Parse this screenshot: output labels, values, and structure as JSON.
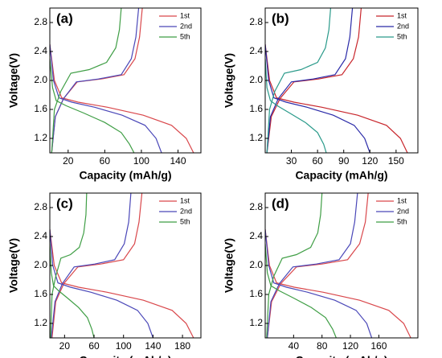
{
  "chart_data": [
    {
      "type": "line",
      "label": "(a)",
      "x_label": "Capacity (mAh/g)",
      "y_label": "Voltage(V)",
      "legend": "upper right",
      "xlim": [
        0,
        165
      ],
      "xticks": [
        20,
        60,
        100,
        140
      ],
      "ylim": [
        1.0,
        3.0
      ],
      "yticks": [
        1.2,
        1.6,
        {
          "value": 2.0,
          "label": "2.0"
        },
        2.4,
        2.8
      ],
      "series": [
        {
          "name": "1st",
          "color": "#d9474b",
          "x": [
            0,
            5,
            13,
            31,
            63,
            102,
            133,
            149,
            157,
            null,
            2,
            6,
            15,
            30,
            56,
            81,
            93,
            98,
            101
          ],
          "values": [
            2.5,
            2.0,
            1.76,
            1.7,
            1.63,
            1.52,
            1.38,
            1.2,
            1.0,
            null,
            1.0,
            1.5,
            1.75,
            1.98,
            2.02,
            2.08,
            2.3,
            2.6,
            3.0
          ]
        },
        {
          "name": "2nd",
          "color": "#4a47b8",
          "x": [
            0,
            4,
            10,
            24,
            49,
            79,
            104,
            116,
            122,
            null,
            2,
            6,
            15,
            29,
            53,
            78,
            89,
            94,
            97
          ],
          "values": [
            2.5,
            2.0,
            1.76,
            1.7,
            1.63,
            1.52,
            1.38,
            1.2,
            1.0,
            null,
            1.0,
            1.5,
            1.75,
            1.98,
            2.02,
            2.08,
            2.3,
            2.6,
            3.0
          ]
        },
        {
          "name": "5th",
          "color": "#3f9e45",
          "x": [
            0,
            3,
            7,
            18,
            37,
            60,
            78,
            87,
            92,
            null,
            2,
            5,
            12,
            23,
            43,
            62,
            72,
            76,
            78
          ],
          "values": [
            2.3,
            1.9,
            1.72,
            1.65,
            1.55,
            1.42,
            1.28,
            1.12,
            1.0,
            null,
            1.0,
            1.6,
            1.85,
            2.1,
            2.15,
            2.25,
            2.45,
            2.7,
            3.0
          ]
        }
      ]
    },
    {
      "type": "line",
      "label": "(b)",
      "x_label": "Capacity (mAh/g)",
      "y_label": "Voltage(V)",
      "legend": "upper right",
      "xlim": [
        0,
        175
      ],
      "xticks": [
        30,
        60,
        90,
        120,
        150
      ],
      "ylim": [
        1.0,
        3.0
      ],
      "yticks": [
        1.2,
        1.6,
        {
          "value": 2.0,
          "label": "2.0"
        },
        2.4,
        2.8
      ],
      "series": [
        {
          "name": "1st",
          "color": "#c8262c",
          "x": [
            0,
            5,
            13,
            33,
            65,
            106,
            139,
            155,
            163,
            null,
            2,
            7,
            17,
            33,
            61,
            88,
            101,
            107,
            110
          ],
          "values": [
            2.5,
            2.0,
            1.76,
            1.7,
            1.63,
            1.52,
            1.38,
            1.2,
            1.0,
            null,
            1.0,
            1.5,
            1.75,
            1.98,
            2.02,
            2.08,
            2.3,
            2.6,
            3.0
          ]
        },
        {
          "name": "2nd",
          "color": "#2a2aa8",
          "x": [
            0,
            4,
            10,
            24,
            48,
            78,
            102,
            114,
            120,
            null,
            2,
            6,
            15,
            30,
            55,
            80,
            92,
            97,
            100
          ],
          "values": [
            2.5,
            2.0,
            1.76,
            1.7,
            1.63,
            1.52,
            1.38,
            1.2,
            1.0,
            null,
            1.0,
            1.5,
            1.75,
            1.98,
            2.02,
            2.08,
            2.3,
            2.6,
            3.0
          ]
        },
        {
          "name": "5th",
          "color": "#2a9a8a",
          "x": [
            0,
            2,
            6,
            14,
            28,
            46,
            60,
            67,
            70,
            null,
            2,
            5,
            11,
            22,
            41,
            60,
            69,
            73,
            75
          ],
          "values": [
            2.3,
            1.9,
            1.72,
            1.65,
            1.55,
            1.42,
            1.28,
            1.12,
            1.0,
            null,
            1.0,
            1.6,
            1.85,
            2.1,
            2.15,
            2.25,
            2.45,
            2.7,
            3.0
          ]
        }
      ]
    },
    {
      "type": "line",
      "label": "(c)",
      "x_label": "Capacity (mAh/g)",
      "y_label": "Voltage(V)",
      "legend": "upper right",
      "xlim": [
        0,
        205
      ],
      "xticks": [
        20,
        60,
        100,
        140,
        180
      ],
      "ylim": [
        1.0,
        3.0
      ],
      "yticks": [
        1.2,
        1.6,
        {
          "value": 2.0,
          "label": "2.0"
        },
        2.4,
        2.8
      ],
      "series": [
        {
          "name": "1st",
          "color": "#d9474b",
          "x": [
            0,
            6,
            16,
            39,
            78,
            127,
            166,
            185,
            195,
            null,
            3,
            8,
            19,
            38,
            69,
            100,
            115,
            121,
            125
          ],
          "values": [
            2.5,
            2.0,
            1.76,
            1.7,
            1.63,
            1.52,
            1.38,
            1.2,
            1.0,
            null,
            1.0,
            1.5,
            1.75,
            1.98,
            2.02,
            2.08,
            2.3,
            2.6,
            3.0
          ]
        },
        {
          "name": "2nd",
          "color": "#4a47b8",
          "x": [
            0,
            4,
            11,
            28,
            56,
            91,
            119,
            133,
            140,
            null,
            2,
            7,
            17,
            33,
            61,
            88,
            101,
            107,
            110
          ],
          "values": [
            2.5,
            2.0,
            1.76,
            1.7,
            1.63,
            1.52,
            1.38,
            1.2,
            1.0,
            null,
            1.0,
            1.5,
            1.75,
            1.98,
            2.02,
            2.08,
            2.3,
            2.6,
            3.0
          ]
        },
        {
          "name": "5th",
          "color": "#3f9e45",
          "x": [
            0,
            2,
            5,
            12,
            24,
            39,
            51,
            57,
            60,
            null,
            1,
            3,
            8,
            15,
            28,
            40,
            46,
            49,
            50
          ],
          "values": [
            2.3,
            1.9,
            1.72,
            1.65,
            1.55,
            1.42,
            1.28,
            1.12,
            1.0,
            null,
            1.0,
            1.6,
            1.85,
            2.1,
            2.15,
            2.25,
            2.45,
            2.7,
            3.0
          ]
        }
      ]
    },
    {
      "type": "line",
      "label": "(d)",
      "x_label": "Capacity (mAh/g)",
      "y_label": "Voltage(V)",
      "legend": "upper right",
      "xlim": [
        0,
        215
      ],
      "xticks": [
        40,
        80,
        120,
        160
      ],
      "ylim": [
        1.0,
        3.0
      ],
      "yticks": [
        1.2,
        1.6,
        {
          "value": 2.0,
          "label": "2.0"
        },
        2.4,
        2.8
      ],
      "series": [
        {
          "name": "1st",
          "color": "#d9474b",
          "x": [
            0,
            6,
            16,
            41,
            82,
            133,
            174,
            195,
            205,
            null,
            3,
            9,
            22,
            44,
            80,
            116,
            133,
            141,
            145
          ],
          "values": [
            2.5,
            2.0,
            1.76,
            1.7,
            1.63,
            1.52,
            1.38,
            1.2,
            1.0,
            null,
            1.0,
            1.5,
            1.75,
            1.98,
            2.02,
            2.08,
            2.3,
            2.6,
            3.0
          ]
        },
        {
          "name": "2nd",
          "color": "#4a47b8",
          "x": [
            0,
            5,
            12,
            30,
            60,
            98,
            128,
            143,
            150,
            null,
            3,
            8,
            20,
            39,
            72,
            104,
            120,
            126,
            130
          ],
          "values": [
            2.5,
            2.0,
            1.76,
            1.7,
            1.63,
            1.52,
            1.38,
            1.2,
            1.0,
            null,
            1.0,
            1.5,
            1.75,
            1.98,
            2.02,
            2.08,
            2.3,
            2.6,
            3.0
          ]
        },
        {
          "name": "5th",
          "color": "#3f9e45",
          "x": [
            0,
            3,
            8,
            20,
            40,
            65,
            85,
            95,
            100,
            null,
            2,
            5,
            12,
            24,
            44,
            64,
            74,
            78,
            80
          ],
          "values": [
            2.3,
            1.9,
            1.72,
            1.65,
            1.55,
            1.42,
            1.28,
            1.12,
            1.0,
            null,
            1.0,
            1.6,
            1.85,
            2.1,
            2.15,
            2.25,
            2.45,
            2.7,
            3.0
          ]
        }
      ]
    }
  ]
}
